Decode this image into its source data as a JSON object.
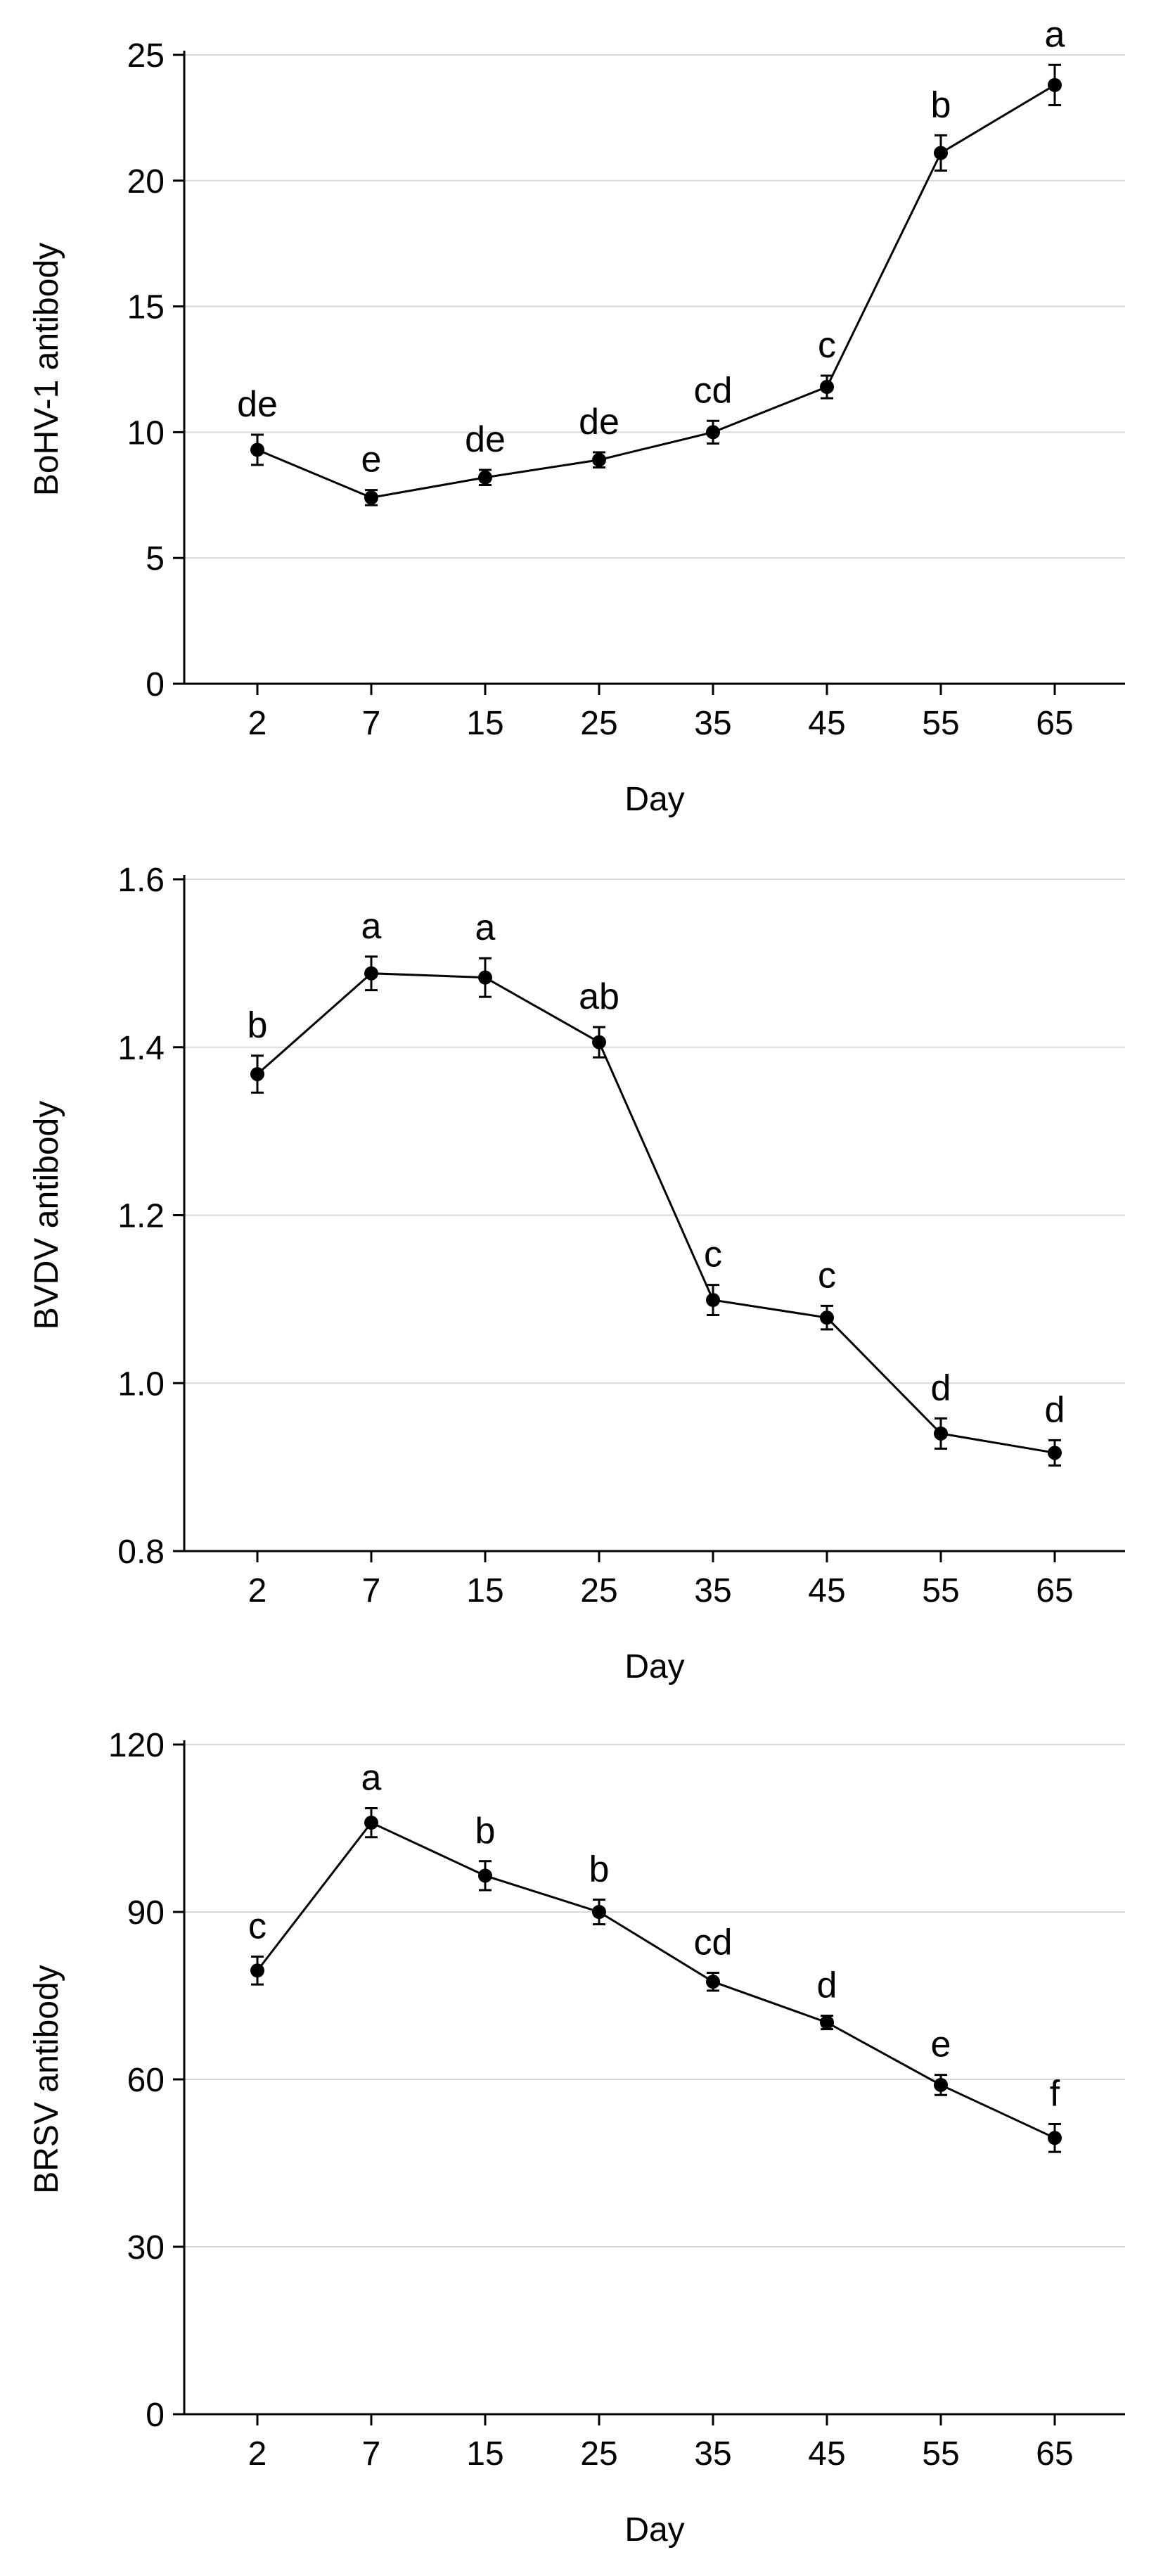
{
  "chart_data": [
    {
      "type": "line",
      "xlabel": "Day",
      "ylabel": "BoHV-1 antibody",
      "categories": [
        "2",
        "7",
        "15",
        "25",
        "35",
        "45",
        "55",
        "65"
      ],
      "ylim": [
        0,
        25
      ],
      "yticks": [
        0,
        5,
        10,
        15,
        20,
        25
      ],
      "ytick_labels": [
        "0",
        "5",
        "10",
        "15",
        "20",
        "25"
      ],
      "grid": "horizontal",
      "series": [
        {
          "values": [
            9.3,
            7.4,
            8.2,
            8.9,
            10.0,
            11.8,
            21.1,
            23.8
          ],
          "errors": [
            0.6,
            0.3,
            0.3,
            0.3,
            0.45,
            0.45,
            0.7,
            0.8
          ],
          "annotations": [
            "de",
            "e",
            "de",
            "de",
            "cd",
            "c",
            "b",
            "a"
          ]
        }
      ]
    },
    {
      "type": "line",
      "xlabel": "Day",
      "ylabel": "BVDV antibody",
      "categories": [
        "2",
        "7",
        "15",
        "25",
        "35",
        "45",
        "55",
        "65"
      ],
      "ylim": [
        0.8,
        1.6
      ],
      "yticks": [
        0.8,
        1.0,
        1.2,
        1.4,
        1.6
      ],
      "ytick_labels": [
        "0.8",
        "1.0",
        "1.2",
        "1.4",
        "1.6"
      ],
      "grid": "horizontal",
      "series": [
        {
          "values": [
            1.368,
            1.488,
            1.483,
            1.406,
            1.099,
            1.078,
            0.94,
            0.917
          ],
          "errors": [
            0.022,
            0.02,
            0.023,
            0.018,
            0.018,
            0.014,
            0.018,
            0.015
          ],
          "annotations": [
            "b",
            "a",
            "a",
            "ab",
            "c",
            "c",
            "d",
            "d"
          ]
        }
      ]
    },
    {
      "type": "line",
      "xlabel": "Day",
      "ylabel": "BRSV antibody",
      "categories": [
        "2",
        "7",
        "15",
        "25",
        "35",
        "45",
        "55",
        "65"
      ],
      "ylim": [
        0,
        120
      ],
      "yticks": [
        0,
        30,
        60,
        90,
        120
      ],
      "ytick_labels": [
        "0",
        "30",
        "60",
        "90",
        "120"
      ],
      "grid": "horizontal",
      "series": [
        {
          "values": [
            79.5,
            106.0,
            96.5,
            90.0,
            77.5,
            70.2,
            59.0,
            49.5
          ],
          "errors": [
            2.5,
            2.6,
            2.6,
            2.2,
            1.6,
            1.2,
            1.8,
            2.5
          ],
          "annotations": [
            "c",
            "a",
            "b",
            "b",
            "cd",
            "d",
            "e",
            "f"
          ]
        }
      ]
    }
  ]
}
